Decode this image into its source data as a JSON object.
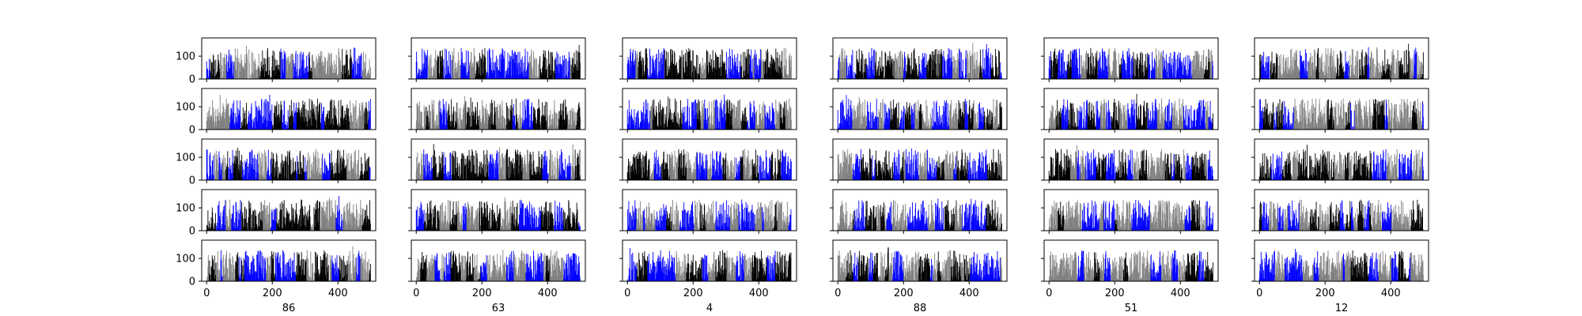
{
  "chart_data": {
    "type": "bar",
    "layout": {
      "rows": 5,
      "cols": 6,
      "sharey": true,
      "sharex": true
    },
    "column_labels": [
      "86",
      "63",
      "4",
      "88",
      "51",
      "12"
    ],
    "x_range": [
      -15,
      515
    ],
    "ylim": [
      0,
      180
    ],
    "x_ticks": [
      0,
      200,
      400
    ],
    "y_ticks": [
      0,
      100
    ],
    "bars_per_panel": 500,
    "value_range": [
      0,
      160
    ],
    "series_colors": [
      "#000000",
      "#0000ff",
      "#808080"
    ],
    "grid": false,
    "legend": "none"
  }
}
